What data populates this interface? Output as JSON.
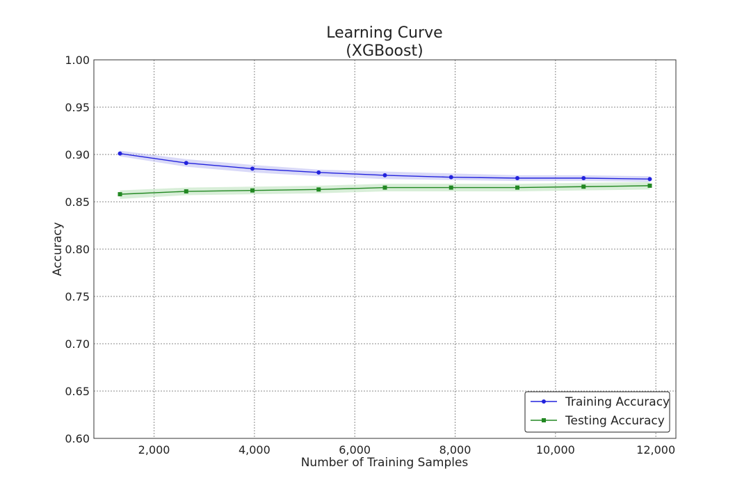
{
  "chart_data": {
    "type": "line",
    "title": "Learning Curve",
    "subtitle": "(XGBoost)",
    "xlabel": "Number of Training Samples",
    "ylabel": "Accuracy",
    "xlim": [
      800,
      12400
    ],
    "ylim": [
      0.6,
      1.0
    ],
    "xticks": [
      2000,
      4000,
      6000,
      8000,
      10000,
      12000
    ],
    "xtick_labels": [
      "2,000",
      "4,000",
      "6,000",
      "8,000",
      "10,000",
      "12,000"
    ],
    "yticks": [
      0.6,
      0.65,
      0.7,
      0.75,
      0.8,
      0.85,
      0.9,
      0.95,
      1.0
    ],
    "ytick_labels": [
      "0.60",
      "0.65",
      "0.70",
      "0.75",
      "0.80",
      "0.85",
      "0.90",
      "0.95",
      "1.00"
    ],
    "grid": true,
    "legend_position": "bottom-right",
    "x": [
      1320,
      2640,
      3960,
      5280,
      6600,
      7920,
      9240,
      10560,
      11880
    ],
    "series": [
      {
        "name": "Training Accuracy",
        "color": "#2222dd",
        "band_color": "#b9b9f2",
        "marker": "circle",
        "values": [
          0.901,
          0.891,
          0.885,
          0.881,
          0.878,
          0.876,
          0.875,
          0.875,
          0.874
        ],
        "lower": [
          0.898,
          0.887,
          0.881,
          0.877,
          0.874,
          0.873,
          0.872,
          0.872,
          0.871
        ],
        "upper": [
          0.904,
          0.895,
          0.889,
          0.884,
          0.882,
          0.88,
          0.878,
          0.878,
          0.877
        ]
      },
      {
        "name": "Testing Accuracy",
        "color": "#228822",
        "band_color": "#b8e0b8",
        "marker": "square",
        "values": [
          0.858,
          0.861,
          0.862,
          0.863,
          0.865,
          0.865,
          0.865,
          0.866,
          0.867
        ],
        "lower": [
          0.853,
          0.857,
          0.858,
          0.859,
          0.861,
          0.861,
          0.861,
          0.862,
          0.863
        ],
        "upper": [
          0.862,
          0.865,
          0.866,
          0.867,
          0.869,
          0.869,
          0.869,
          0.87,
          0.871
        ]
      }
    ]
  }
}
